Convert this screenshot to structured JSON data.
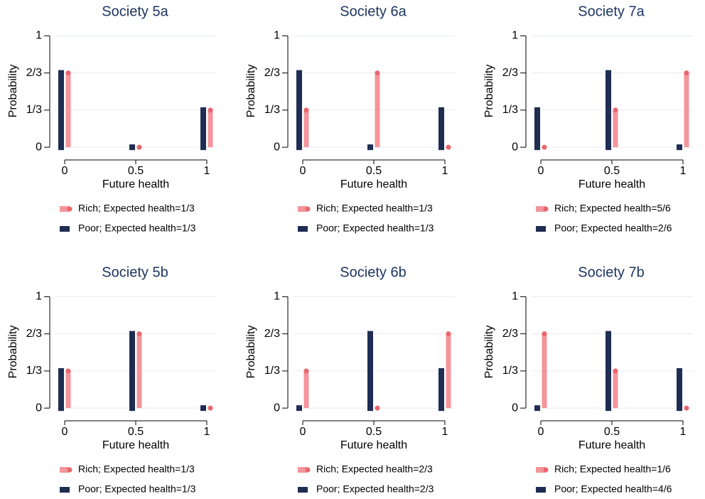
{
  "chart_data": [
    {
      "type": "bar",
      "title": "Society 5a",
      "xlabel": "Future health",
      "ylabel": "Probability",
      "grid": true,
      "x": [
        0,
        0.5,
        1
      ],
      "xlim": [
        -0.065,
        1.07
      ],
      "xticks": [
        0,
        0.5,
        1
      ],
      "ylim": [
        -0.063,
        1.06
      ],
      "yticks": [
        0,
        {
          "value": 0.3333,
          "label": "1/3"
        },
        {
          "value": 0.6667,
          "label": "2/3"
        },
        1
      ],
      "series": [
        {
          "name": "Rich; Expected health=1/3",
          "color": "#f4959b",
          "values": [
            0.6667,
            0,
            0.3333
          ]
        },
        {
          "name": "Poor; Expected health=1/3",
          "color": "#1f2d52",
          "values": [
            0.6667,
            0,
            0.3333
          ]
        }
      ]
    },
    {
      "type": "bar",
      "title": "Society 6a",
      "xlabel": "Future health",
      "ylabel": "Probability",
      "grid": true,
      "x": [
        0,
        0.5,
        1
      ],
      "xlim": [
        -0.065,
        1.07
      ],
      "xticks": [
        0,
        0.5,
        1
      ],
      "ylim": [
        -0.063,
        1.06
      ],
      "yticks": [
        0,
        {
          "value": 0.3333,
          "label": "1/3"
        },
        {
          "value": 0.6667,
          "label": "2/3"
        },
        1
      ],
      "series": [
        {
          "name": "Rich; Expected health=1/3",
          "color": "#f4959b",
          "values": [
            0.3333,
            0.6667,
            0
          ]
        },
        {
          "name": "Poor; Expected health=1/3",
          "color": "#1f2d52",
          "values": [
            0.6667,
            0,
            0.3333
          ]
        }
      ]
    },
    {
      "type": "bar",
      "title": "Society 7a",
      "xlabel": "Future health",
      "ylabel": "Probability",
      "grid": true,
      "x": [
        0,
        0.5,
        1
      ],
      "xlim": [
        -0.065,
        1.07
      ],
      "xticks": [
        0,
        0.5,
        1
      ],
      "ylim": [
        -0.063,
        1.06
      ],
      "yticks": [
        0,
        {
          "value": 0.3333,
          "label": "1/3"
        },
        {
          "value": 0.6667,
          "label": "2/3"
        },
        1
      ],
      "series": [
        {
          "name": "Rich; Expected health=5/6",
          "color": "#f4959b",
          "values": [
            0,
            0.3333,
            0.6667
          ]
        },
        {
          "name": "Poor; Expected health=2/6",
          "color": "#1f2d52",
          "values": [
            0.3333,
            0.6667,
            0
          ]
        }
      ]
    },
    {
      "type": "bar",
      "title": "Society 5b",
      "xlabel": "Future health",
      "ylabel": "Probability",
      "grid": true,
      "x": [
        0,
        0.5,
        1
      ],
      "xlim": [
        -0.065,
        1.07
      ],
      "xticks": [
        0,
        0.5,
        1
      ],
      "ylim": [
        -0.063,
        1.06
      ],
      "yticks": [
        0,
        {
          "value": 0.3333,
          "label": "1/3"
        },
        {
          "value": 0.6667,
          "label": "2/3"
        },
        1
      ],
      "series": [
        {
          "name": "Rich; Expected health=1/3",
          "color": "#f4959b",
          "values": [
            0.3333,
            0.6667,
            0
          ]
        },
        {
          "name": "Poor; Expected health=1/3",
          "color": "#1f2d52",
          "values": [
            0.3333,
            0.6667,
            0
          ]
        }
      ]
    },
    {
      "type": "bar",
      "title": "Society 6b",
      "xlabel": "Future health",
      "ylabel": "Probability",
      "grid": true,
      "x": [
        0,
        0.5,
        1
      ],
      "xlim": [
        -0.065,
        1.07
      ],
      "xticks": [
        0,
        0.5,
        1
      ],
      "ylim": [
        -0.063,
        1.06
      ],
      "yticks": [
        0,
        {
          "value": 0.3333,
          "label": "1/3"
        },
        {
          "value": 0.6667,
          "label": "2/3"
        },
        1
      ],
      "series": [
        {
          "name": "Rich; Expected health=2/3",
          "color": "#f4959b",
          "values": [
            0.3333,
            0,
            0.6667
          ]
        },
        {
          "name": "Poor; Expected health=2/3",
          "color": "#1f2d52",
          "values": [
            0,
            0.6667,
            0.3333
          ]
        }
      ]
    },
    {
      "type": "bar",
      "title": "Society 7b",
      "xlabel": "Future health",
      "ylabel": "Probability",
      "grid": true,
      "x": [
        0,
        0.5,
        1
      ],
      "xlim": [
        -0.065,
        1.07
      ],
      "xticks": [
        0,
        0.5,
        1
      ],
      "ylim": [
        -0.063,
        1.06
      ],
      "yticks": [
        0,
        {
          "value": 0.3333,
          "label": "1/3"
        },
        {
          "value": 0.6667,
          "label": "2/3"
        },
        1
      ],
      "series": [
        {
          "name": "Rich; Expected health=1/6",
          "color": "#f4959b",
          "values": [
            0.6667,
            0.3333,
            0
          ]
        },
        {
          "name": "Poor; Expected health=4/6",
          "color": "#1f2d52",
          "values": [
            0,
            0.6667,
            0.3333
          ]
        }
      ]
    }
  ]
}
